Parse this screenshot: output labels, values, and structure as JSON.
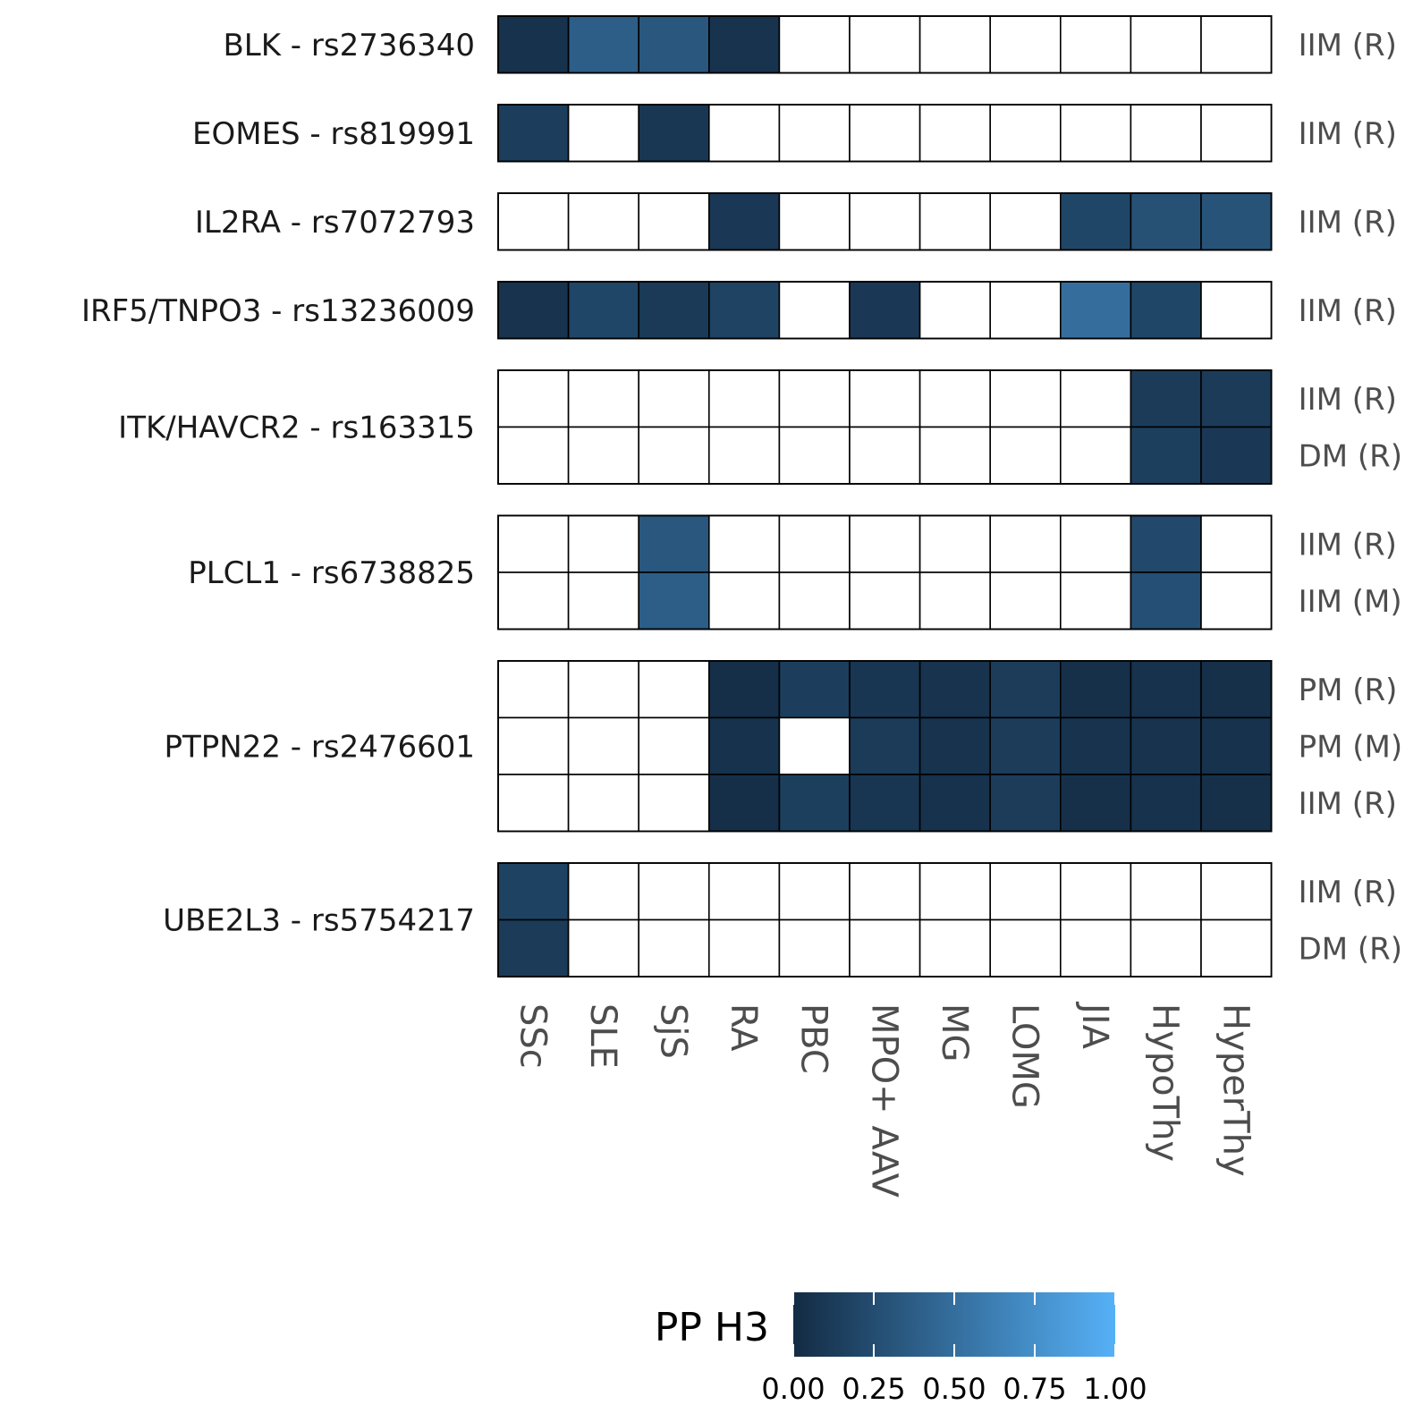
{
  "chart_data": {
    "type": "heatmap",
    "columns": [
      "SSc",
      "SLE",
      "SjS",
      "RA",
      "PBC",
      "MPO+ AAV",
      "MG",
      "LOMG",
      "JIA",
      "HypoThy",
      "HyperThy"
    ],
    "legend": {
      "title": "PP H3",
      "ticks": [
        "0.00",
        "0.25",
        "0.50",
        "0.75",
        "1.00"
      ],
      "tick_values": [
        0,
        0.25,
        0.5,
        0.75,
        1
      ],
      "color_low": "#132B43",
      "color_high": "#56B1F7"
    },
    "missing_color": "#ffffff",
    "groups": [
      {
        "label": "BLK - rs2736340",
        "rows": [
          {
            "label": "IIM (R)",
            "values": [
              0.05,
              0.38,
              0.33,
              0.06,
              null,
              null,
              null,
              null,
              null,
              null,
              null
            ]
          }
        ]
      },
      {
        "label": "EOMES - rs819991",
        "rows": [
          {
            "label": "IIM (R)",
            "values": [
              0.14,
              null,
              0.09,
              null,
              null,
              null,
              null,
              null,
              null,
              null,
              null
            ]
          }
        ]
      },
      {
        "label": "IL2RA - rs7072793",
        "rows": [
          {
            "label": "IIM (R)",
            "values": [
              null,
              null,
              null,
              0.1,
              null,
              null,
              null,
              null,
              0.2,
              0.28,
              0.3
            ]
          }
        ]
      },
      {
        "label": "IRF5/TNPO3 - rs13236009",
        "rows": [
          {
            "label": "IIM (R)",
            "values": [
              0.06,
              0.2,
              0.11,
              0.18,
              null,
              0.1,
              null,
              null,
              0.5,
              0.2,
              null
            ]
          }
        ]
      },
      {
        "label": "ITK/HAVCR2 - rs163315",
        "rows": [
          {
            "label": "IIM (R)",
            "values": [
              null,
              null,
              null,
              null,
              null,
              null,
              null,
              null,
              null,
              0.12,
              0.12
            ]
          },
          {
            "label": "DM (R)",
            "values": [
              null,
              null,
              null,
              null,
              null,
              null,
              null,
              null,
              null,
              0.15,
              0.1
            ]
          }
        ]
      },
      {
        "label": "PLCL1 - rs6738825",
        "rows": [
          {
            "label": "IIM (R)",
            "values": [
              null,
              null,
              0.33,
              null,
              null,
              null,
              null,
              null,
              null,
              0.22,
              null
            ]
          },
          {
            "label": "IIM (M)",
            "values": [
              null,
              null,
              0.38,
              null,
              null,
              null,
              null,
              null,
              null,
              0.27,
              null
            ]
          }
        ]
      },
      {
        "label": "PTPN22 - rs2476601",
        "rows": [
          {
            "label": "PM (R)",
            "values": [
              null,
              null,
              null,
              0.03,
              0.14,
              0.08,
              0.06,
              0.13,
              0.04,
              0.05,
              0.04
            ]
          },
          {
            "label": "PM (M)",
            "values": [
              null,
              null,
              null,
              0.05,
              null,
              0.12,
              0.06,
              0.13,
              0.06,
              0.06,
              0.05
            ]
          },
          {
            "label": "IIM (R)",
            "values": [
              null,
              null,
              null,
              0.03,
              0.15,
              0.08,
              0.05,
              0.13,
              0.04,
              0.05,
              0.04
            ]
          }
        ]
      },
      {
        "label": "UBE2L3 - rs5754217",
        "rows": [
          {
            "label": "IIM (R)",
            "values": [
              0.17,
              null,
              null,
              null,
              null,
              null,
              null,
              null,
              null,
              null,
              null
            ]
          },
          {
            "label": "DM (R)",
            "values": [
              0.12,
              null,
              null,
              null,
              null,
              null,
              null,
              null,
              null,
              null,
              null
            ]
          }
        ]
      }
    ]
  }
}
